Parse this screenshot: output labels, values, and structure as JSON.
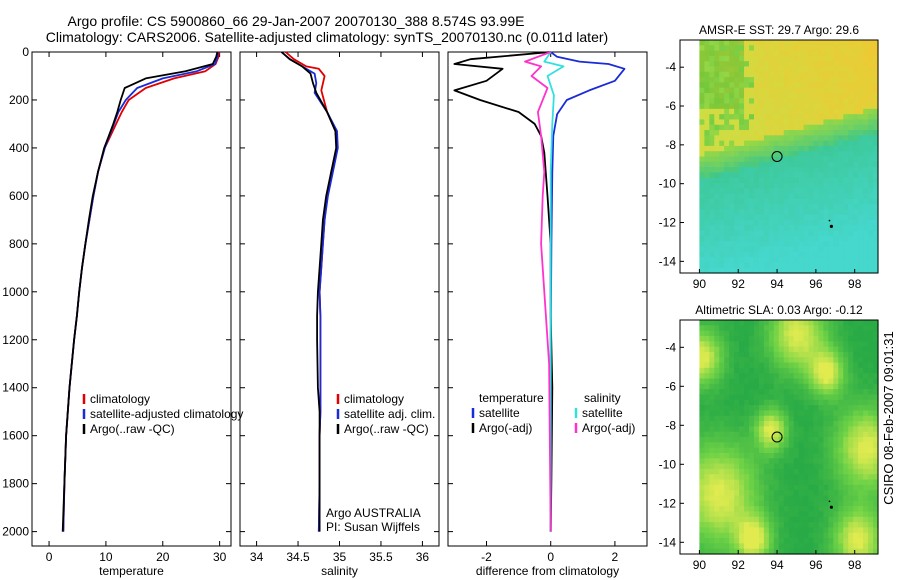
{
  "title": {
    "line1": "Argo profile: CS 5900860_66 29-Jan-2007 20070130_388 8.574S 93.99E",
    "line2": "Climatology: CARS2006. Satellite-adjusted climatology: synTS_20070130.nc (0.011d later)"
  },
  "side_label": "CSIRO 08-Feb-2007 09:01:31",
  "colors": {
    "climatology": "#e00000",
    "satellite": "#1a2bd8",
    "argo": "#000000",
    "satellite_salinity": "#33e0e0",
    "argo_salinity": "#ff33cc"
  },
  "chart_data": [
    {
      "type": "line",
      "name": "temperature-profile",
      "xlabel": "temperature",
      "ylabel": "",
      "xlim": [
        -3,
        32
      ],
      "ylim": [
        2060,
        0
      ],
      "xticks": [
        0,
        10,
        20,
        30
      ],
      "yticks": [
        0,
        200,
        400,
        600,
        800,
        1000,
        1200,
        1400,
        1600,
        1800,
        2000
      ],
      "legend": [
        "climatology",
        "satellite-adjusted climatology",
        "Argo(..raw -QC)"
      ],
      "series": [
        {
          "name": "climatology",
          "color_key": "climatology",
          "x": [
            29.9,
            29.8,
            29.3,
            27.5,
            22,
            17,
            14,
            12.8,
            11.8,
            10.8,
            9.8,
            8.6,
            7.8,
            7.1,
            6.4,
            5.8,
            5.3,
            4.9,
            4.4,
            4.0,
            3.6,
            3.3,
            3.0,
            2.7,
            2.5
          ],
          "y": [
            0,
            20,
            50,
            80,
            110,
            150,
            200,
            250,
            300,
            350,
            400,
            500,
            600,
            700,
            800,
            900,
            1000,
            1100,
            1200,
            1300,
            1400,
            1500,
            1600,
            1800,
            2000
          ]
        },
        {
          "name": "satellite-adjusted climatology",
          "color_key": "satellite",
          "x": [
            29.7,
            29.6,
            29.2,
            26,
            20,
            15.5,
            13.5,
            12.2,
            11.4,
            10.6,
            9.8,
            8.6,
            7.8,
            7.1,
            6.4,
            5.8,
            5.3,
            4.9,
            4.4,
            4.0,
            3.6,
            3.3,
            3.0,
            2.7,
            2.5
          ],
          "y": [
            0,
            20,
            50,
            80,
            110,
            150,
            200,
            250,
            300,
            350,
            400,
            500,
            600,
            700,
            800,
            900,
            1000,
            1100,
            1200,
            1300,
            1400,
            1500,
            1600,
            1800,
            2000
          ]
        },
        {
          "name": "Argo(..raw -QC)",
          "color_key": "argo",
          "x": [
            29.6,
            29.4,
            28.8,
            24,
            17,
            13.3,
            12.6,
            12.0,
            11.3,
            10.5,
            9.7,
            8.6,
            7.7,
            7.0,
            6.4,
            5.8,
            5.3,
            4.9,
            4.4,
            4.0,
            3.6,
            3.3,
            3.0,
            2.7,
            2.4
          ],
          "y": [
            0,
            20,
            50,
            80,
            110,
            150,
            200,
            250,
            300,
            350,
            400,
            500,
            600,
            700,
            800,
            900,
            1000,
            1100,
            1200,
            1300,
            1400,
            1500,
            1600,
            1800,
            2000
          ]
        }
      ]
    },
    {
      "type": "line",
      "name": "salinity-profile",
      "xlabel": "salinity",
      "xlim": [
        33.8,
        36.2
      ],
      "ylim": [
        2060,
        0
      ],
      "xticks": [
        34,
        34.5,
        35,
        35.5,
        36
      ],
      "legend": [
        "climatology",
        "satellite adj. clim.",
        "Argo(..raw -QC)"
      ],
      "annotation": [
        "Argo AUSTRALIA",
        "PI: Susan Wijffels"
      ],
      "series": [
        {
          "name": "climatology",
          "color_key": "climatology",
          "x": [
            34.35,
            34.45,
            34.6,
            34.75,
            34.82,
            34.78,
            34.85,
            34.95,
            34.97,
            34.9,
            34.85,
            34.82,
            34.8,
            34.78,
            34.76,
            34.77,
            34.77,
            34.77,
            34.77,
            34.76,
            34.76,
            34.75
          ],
          "y": [
            0,
            30,
            60,
            70,
            100,
            160,
            250,
            330,
            400,
            500,
            600,
            700,
            800,
            900,
            1000,
            1100,
            1200,
            1400,
            1500,
            1600,
            1800,
            2000
          ]
        },
        {
          "name": "satellite adj. clim.",
          "color_key": "satellite",
          "x": [
            34.3,
            34.4,
            34.55,
            34.7,
            34.72,
            34.7,
            34.85,
            34.97,
            34.98,
            34.92,
            34.86,
            34.82,
            34.8,
            34.78,
            34.76,
            34.77,
            34.77,
            34.77,
            34.77,
            34.76,
            34.76,
            34.75
          ],
          "y": [
            0,
            30,
            60,
            90,
            130,
            170,
            250,
            330,
            400,
            500,
            600,
            700,
            800,
            900,
            1000,
            1100,
            1200,
            1400,
            1500,
            1600,
            1800,
            2000
          ]
        },
        {
          "name": "Argo(..raw -QC)",
          "color_key": "argo",
          "x": [
            34.3,
            34.4,
            34.55,
            34.65,
            34.68,
            34.72,
            34.85,
            34.95,
            34.96,
            34.9,
            34.84,
            34.8,
            34.78,
            34.76,
            34.74,
            34.73,
            34.73,
            34.74,
            34.76,
            34.76,
            34.76,
            34.76
          ],
          "y": [
            0,
            30,
            60,
            90,
            130,
            170,
            250,
            330,
            400,
            500,
            600,
            700,
            800,
            900,
            1000,
            1100,
            1200,
            1400,
            1500,
            1600,
            1800,
            2000
          ]
        }
      ]
    },
    {
      "type": "line",
      "name": "difference-profile",
      "xlabel": "difference from climatology",
      "xlim": [
        -3.2,
        3.0
      ],
      "ylim": [
        2060,
        0
      ],
      "xticks": [
        -2,
        0,
        2
      ],
      "legend_temperature_title": "temperature",
      "legend_salinity_title": "salinity",
      "legend_temperature": [
        "satellite",
        "Argo(-adj)"
      ],
      "legend_salinity": [
        "satellite",
        "Argo(-adj)"
      ],
      "series": [
        {
          "name": "temperature satellite",
          "color_key": "satellite",
          "x": [
            0,
            0.2,
            0.9,
            1.8,
            2.3,
            2.0,
            1.2,
            0.5,
            0.2,
            0.08,
            0.05,
            0.02,
            0.0,
            0.0
          ],
          "y": [
            0,
            20,
            40,
            50,
            70,
            120,
            160,
            200,
            260,
            350,
            500,
            800,
            1200,
            2000
          ]
        },
        {
          "name": "temperature Argo(-adj)",
          "color_key": "argo",
          "x": [
            0,
            -2.5,
            -3.0,
            -1.5,
            -2.0,
            -3.0,
            -2.2,
            -1.0,
            -0.5,
            -0.3,
            -0.2,
            -0.1,
            0.0,
            0.0,
            0.05,
            0.02,
            0.0
          ],
          "y": [
            0,
            30,
            50,
            70,
            120,
            160,
            200,
            250,
            300,
            350,
            420,
            600,
            800,
            1100,
            1400,
            1780,
            2000
          ]
        },
        {
          "name": "salinity satellite",
          "color_key": "satellite_salinity",
          "x": [
            0,
            -0.2,
            0.4,
            -0.1,
            0.1,
            0.05,
            0.0,
            0.0,
            0.0,
            0.0
          ],
          "y": [
            0,
            40,
            60,
            100,
            180,
            300,
            500,
            800,
            1200,
            2000
          ]
        },
        {
          "name": "salinity Argo(-adj)",
          "color_key": "argo_salinity",
          "x": [
            0,
            -0.8,
            -0.3,
            -0.6,
            -0.1,
            -0.4,
            -0.3,
            -0.2,
            -0.25,
            -0.3,
            -0.2,
            -0.05,
            0.0
          ],
          "y": [
            0,
            40,
            60,
            100,
            150,
            250,
            350,
            500,
            600,
            800,
            1000,
            1300,
            2000
          ]
        }
      ]
    },
    {
      "type": "heatmap",
      "name": "amsre-sst-map",
      "title": "AMSR-E SST: 29.7  Argo: 29.6",
      "xlim": [
        89,
        99.2
      ],
      "ylim": [
        -14.6,
        -2.6
      ],
      "xticks": [
        90,
        92,
        94,
        96,
        98
      ],
      "yticks": [
        -4,
        -6,
        -8,
        -10,
        -12,
        -14
      ],
      "marker": {
        "lon": 94.0,
        "lat": -8.6
      }
    },
    {
      "type": "heatmap",
      "name": "altimetric-sla-map",
      "title": "Altimetric SLA: 0.03  Argo: -0.12",
      "xlim": [
        89,
        99.2
      ],
      "ylim": [
        -14.6,
        -2.6
      ],
      "xticks": [
        90,
        92,
        94,
        96,
        98
      ],
      "yticks": [
        -4,
        -6,
        -8,
        -10,
        -12,
        -14
      ],
      "marker": {
        "lon": 94.0,
        "lat": -8.6
      }
    }
  ]
}
